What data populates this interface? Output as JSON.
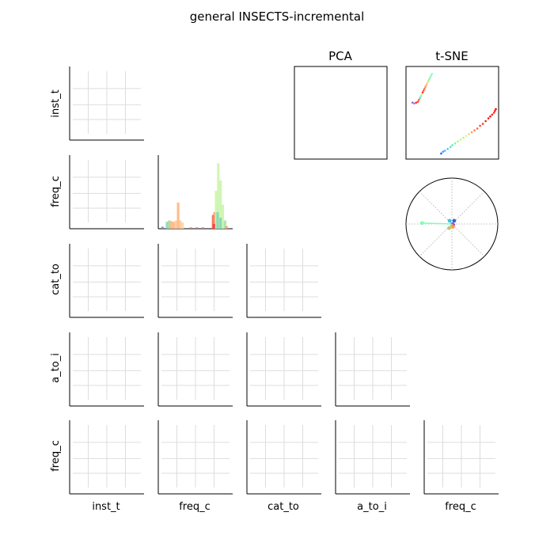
{
  "chart_data": {
    "type": "scatter",
    "title": "general INSECTS-incremental",
    "variables": [
      "inst_t",
      "freq_c",
      "cat_to",
      "a_to_i",
      "freq_c"
    ],
    "panels": {
      "pca": {
        "title": "PCA",
        "points": []
      },
      "tsne": {
        "title": "t-SNE",
        "xlim": [
          0,
          1
        ],
        "ylim": [
          0,
          1
        ],
        "clusters": [
          {
            "name": "upper-left",
            "points": [
              [
                0.28,
                0.92
              ],
              [
                0.27,
                0.9
              ],
              [
                0.26,
                0.88
              ],
              [
                0.25,
                0.86
              ],
              [
                0.24,
                0.84
              ],
              [
                0.23,
                0.82
              ],
              [
                0.22,
                0.8
              ],
              [
                0.21,
                0.78
              ],
              [
                0.2,
                0.76
              ],
              [
                0.19,
                0.74
              ],
              [
                0.18,
                0.72
              ],
              [
                0.17,
                0.7
              ],
              [
                0.16,
                0.68
              ],
              [
                0.15,
                0.66
              ],
              [
                0.14,
                0.64
              ],
              [
                0.13,
                0.62
              ],
              [
                0.11,
                0.61
              ],
              [
                0.09,
                0.6
              ],
              [
                0.07,
                0.61
              ]
            ],
            "colors": [
              "#7fffd4",
              "#7fffd4",
              "#9af0a0",
              "#9af0a0",
              "#b0f090",
              "#ffd27f",
              "#ffb070",
              "#ff9060",
              "#ff7050",
              "#ff5040",
              "#ff3030",
              "#c0ff80",
              "#80ffb0",
              "#60e0c0",
              "#ff6040",
              "#ff4040",
              "#ff2020",
              "#c070c0",
              "#8060ff"
            ]
          },
          {
            "name": "lower-right",
            "points": [
              [
                0.38,
                0.06
              ],
              [
                0.4,
                0.08
              ],
              [
                0.42,
                0.09
              ],
              [
                0.45,
                0.11
              ],
              [
                0.48,
                0.13
              ],
              [
                0.5,
                0.15
              ],
              [
                0.53,
                0.17
              ],
              [
                0.56,
                0.19
              ],
              [
                0.59,
                0.21
              ],
              [
                0.62,
                0.23
              ],
              [
                0.65,
                0.25
              ],
              [
                0.68,
                0.27
              ],
              [
                0.71,
                0.29
              ],
              [
                0.74,
                0.31
              ],
              [
                0.77,
                0.33
              ],
              [
                0.8,
                0.36
              ],
              [
                0.83,
                0.38
              ],
              [
                0.86,
                0.41
              ],
              [
                0.89,
                0.44
              ],
              [
                0.91,
                0.46
              ],
              [
                0.93,
                0.48
              ],
              [
                0.95,
                0.5
              ],
              [
                0.96,
                0.52
              ],
              [
                0.97,
                0.54
              ]
            ],
            "colors": [
              "#2060ff",
              "#30a0ff",
              "#40c0ff",
              "#40d0e0",
              "#50e0c0",
              "#60f0a0",
              "#80ff80",
              "#a0ff70",
              "#c0ff60",
              "#b0f0a0",
              "#d0ff80",
              "#ffd080",
              "#ffa060",
              "#ff8050",
              "#ff6040",
              "#ff4030",
              "#ff3020",
              "#ff2010",
              "#ff1000",
              "#ff0000",
              "#ff2000",
              "#ff3010",
              "#ff1000",
              "#ff0000"
            ]
          }
        ]
      },
      "histogram": {
        "title": "",
        "row": "freq_c",
        "col": "freq_c",
        "bars": [
          {
            "x": 0.1,
            "h": 0.1,
            "color": "#7fd4c8"
          },
          {
            "x": 0.13,
            "h": 0.12,
            "color": "#a0d890"
          },
          {
            "x": 0.16,
            "h": 0.11,
            "color": "#ffb27a"
          },
          {
            "x": 0.19,
            "h": 0.1,
            "color": "#ffb27a"
          },
          {
            "x": 0.22,
            "h": 0.12,
            "color": "#ffc896"
          },
          {
            "x": 0.25,
            "h": 0.38,
            "color": "#ffb27a"
          },
          {
            "x": 0.28,
            "h": 0.12,
            "color": "#ffc896"
          },
          {
            "x": 0.31,
            "h": 0.09,
            "color": "#ffd2a8"
          },
          {
            "x": 0.04,
            "h": 0.03,
            "color": "#9080c0"
          },
          {
            "x": 0.42,
            "h": 0.02,
            "color": "#c08080"
          },
          {
            "x": 0.5,
            "h": 0.02,
            "color": "#c08080"
          },
          {
            "x": 0.58,
            "h": 0.02,
            "color": "#c08080"
          },
          {
            "x": 0.72,
            "h": 0.2,
            "color": "#ff5a4a"
          },
          {
            "x": 0.74,
            "h": 0.24,
            "color": "#ff8a5a"
          },
          {
            "x": 0.76,
            "h": 0.55,
            "color": "#c8f5a8"
          },
          {
            "x": 0.79,
            "h": 0.95,
            "color": "#c8f5a8"
          },
          {
            "x": 0.82,
            "h": 0.7,
            "color": "#c8f5a8"
          },
          {
            "x": 0.85,
            "h": 0.35,
            "color": "#c8f5a8"
          },
          {
            "x": 0.78,
            "h": 0.24,
            "color": "#7fd4b8"
          },
          {
            "x": 0.82,
            "h": 0.16,
            "color": "#7fd4b8"
          },
          {
            "x": 0.88,
            "h": 0.12,
            "color": "#a0e0a0"
          },
          {
            "x": 0.73,
            "h": 0.07,
            "color": "#ff3a3a"
          },
          {
            "x": 0.9,
            "h": 0.04,
            "color": "#ff9a6a"
          }
        ]
      },
      "biplot": {
        "title": "",
        "xlim": [
          -1,
          1
        ],
        "ylim": [
          -1,
          1
        ],
        "vectors": [
          {
            "x": -0.65,
            "y": 0.02,
            "color": "#7fffb0"
          },
          {
            "x": -0.05,
            "y": 0.07,
            "color": "#40c0e0"
          },
          {
            "x": 0.05,
            "y": 0.07,
            "color": "#4060e0"
          },
          {
            "x": 0.03,
            "y": -0.02,
            "color": "#a050d0"
          },
          {
            "x": 0.02,
            "y": -0.06,
            "color": "#ff9a40"
          },
          {
            "x": -0.06,
            "y": -0.09,
            "color": "#c0c080"
          }
        ]
      }
    }
  }
}
